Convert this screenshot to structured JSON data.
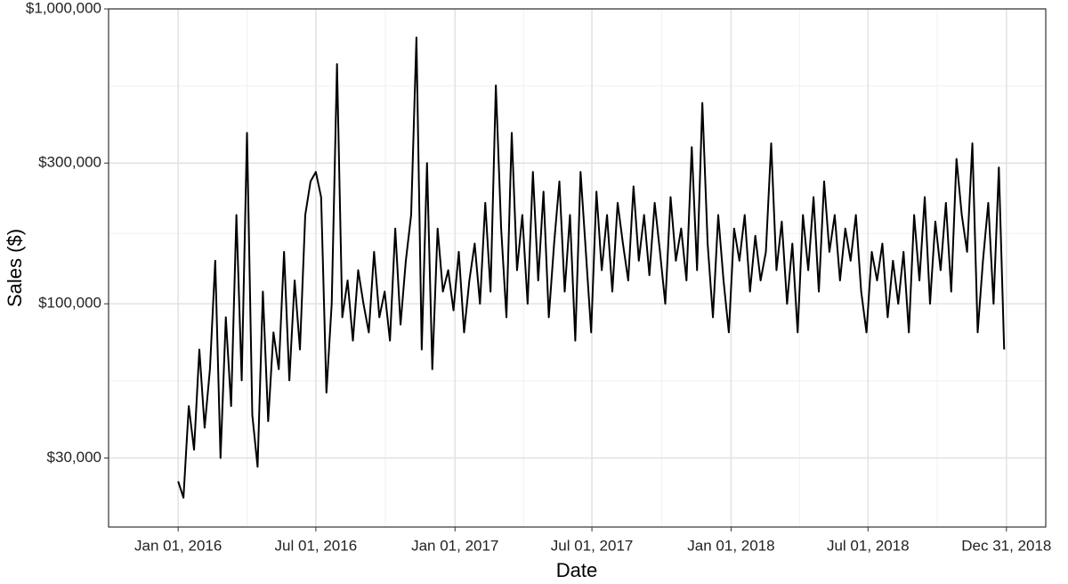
{
  "chart_data": {
    "type": "line",
    "x_label": "Date",
    "y_label": "Sales ($)",
    "log_scale_y": true,
    "grid": true,
    "color": "#000000",
    "xlim": [
      "2015-10-01",
      "2019-02-21"
    ],
    "xticks": [
      {
        "value": "2016-01-01",
        "label": "Jan 01, 2016"
      },
      {
        "value": "2016-07-01",
        "label": "Jul 01, 2016"
      },
      {
        "value": "2017-01-01",
        "label": "Jan 01, 2017"
      },
      {
        "value": "2017-07-01",
        "label": "Jul 01, 2017"
      },
      {
        "value": "2018-01-01",
        "label": "Jan 01, 2018"
      },
      {
        "value": "2018-07-01",
        "label": "Jul 01, 2018"
      },
      {
        "value": "2018-12-31",
        "label": "Dec 31, 2018"
      }
    ],
    "ylim": [
      17500,
      1000000
    ],
    "yticks": [
      {
        "value": 30000,
        "label": "$30,000"
      },
      {
        "value": 100000,
        "label": "$100,000"
      },
      {
        "value": 300000,
        "label": "$300,000"
      },
      {
        "value": 1000000,
        "label": "$1,000,000"
      }
    ],
    "x": [
      "2016-01-01",
      "2016-01-08",
      "2016-01-15",
      "2016-01-22",
      "2016-01-29",
      "2016-02-05",
      "2016-02-12",
      "2016-02-19",
      "2016-02-26",
      "2016-03-04",
      "2016-03-11",
      "2016-03-18",
      "2016-03-25",
      "2016-04-01",
      "2016-04-08",
      "2016-04-15",
      "2016-04-22",
      "2016-04-29",
      "2016-05-06",
      "2016-05-13",
      "2016-05-20",
      "2016-05-27",
      "2016-06-03",
      "2016-06-10",
      "2016-06-17",
      "2016-06-24",
      "2016-07-01",
      "2016-07-08",
      "2016-07-15",
      "2016-07-22",
      "2016-07-29",
      "2016-08-05",
      "2016-08-12",
      "2016-08-19",
      "2016-08-26",
      "2016-09-02",
      "2016-09-09",
      "2016-09-16",
      "2016-09-23",
      "2016-09-30",
      "2016-10-07",
      "2016-10-14",
      "2016-10-21",
      "2016-10-28",
      "2016-11-04",
      "2016-11-11",
      "2016-11-18",
      "2016-11-25",
      "2016-12-02",
      "2016-12-09",
      "2016-12-16",
      "2016-12-23",
      "2016-12-30",
      "2017-01-06",
      "2017-01-13",
      "2017-01-20",
      "2017-01-27",
      "2017-02-03",
      "2017-02-10",
      "2017-02-17",
      "2017-02-24",
      "2017-03-03",
      "2017-03-10",
      "2017-03-17",
      "2017-03-24",
      "2017-03-31",
      "2017-04-07",
      "2017-04-14",
      "2017-04-21",
      "2017-04-28",
      "2017-05-05",
      "2017-05-12",
      "2017-05-19",
      "2017-05-26",
      "2017-06-02",
      "2017-06-09",
      "2017-06-16",
      "2017-06-23",
      "2017-06-30",
      "2017-07-07",
      "2017-07-14",
      "2017-07-21",
      "2017-07-28",
      "2017-08-04",
      "2017-08-11",
      "2017-08-18",
      "2017-08-25",
      "2017-09-01",
      "2017-09-08",
      "2017-09-15",
      "2017-09-22",
      "2017-09-29",
      "2017-10-06",
      "2017-10-13",
      "2017-10-20",
      "2017-10-27",
      "2017-11-03",
      "2017-11-10",
      "2017-11-17",
      "2017-11-24",
      "2017-12-01",
      "2017-12-08",
      "2017-12-15",
      "2017-12-22",
      "2017-12-29",
      "2018-01-05",
      "2018-01-12",
      "2018-01-19",
      "2018-01-26",
      "2018-02-02",
      "2018-02-09",
      "2018-02-16",
      "2018-02-23",
      "2018-03-02",
      "2018-03-09",
      "2018-03-16",
      "2018-03-23",
      "2018-03-30",
      "2018-04-06",
      "2018-04-13",
      "2018-04-20",
      "2018-04-27",
      "2018-05-04",
      "2018-05-11",
      "2018-05-18",
      "2018-05-25",
      "2018-06-01",
      "2018-06-08",
      "2018-06-15",
      "2018-06-22",
      "2018-06-29",
      "2018-07-06",
      "2018-07-13",
      "2018-07-20",
      "2018-07-27",
      "2018-08-03",
      "2018-08-10",
      "2018-08-17",
      "2018-08-24",
      "2018-08-31",
      "2018-09-07",
      "2018-09-14",
      "2018-09-21",
      "2018-09-28",
      "2018-10-05",
      "2018-10-12",
      "2018-10-19",
      "2018-10-26",
      "2018-11-02",
      "2018-11-09",
      "2018-11-16",
      "2018-11-23",
      "2018-11-30",
      "2018-12-07",
      "2018-12-14",
      "2018-12-21",
      "2018-12-28"
    ],
    "values": [
      25000,
      22000,
      45000,
      32000,
      70000,
      38000,
      60000,
      140000,
      30000,
      90000,
      45000,
      200000,
      55000,
      380000,
      42000,
      28000,
      110000,
      40000,
      80000,
      60000,
      150000,
      55000,
      120000,
      70000,
      200000,
      260000,
      280000,
      230000,
      50000,
      100000,
      650000,
      90000,
      120000,
      75000,
      130000,
      100000,
      80000,
      150000,
      90000,
      110000,
      75000,
      180000,
      85000,
      140000,
      200000,
      800000,
      70000,
      300000,
      60000,
      180000,
      110000,
      130000,
      95000,
      150000,
      80000,
      120000,
      160000,
      100000,
      220000,
      110000,
      550000,
      180000,
      90000,
      380000,
      130000,
      200000,
      100000,
      280000,
      120000,
      240000,
      90000,
      160000,
      260000,
      110000,
      200000,
      75000,
      280000,
      150000,
      80000,
      240000,
      130000,
      200000,
      110000,
      220000,
      160000,
      120000,
      250000,
      140000,
      200000,
      125000,
      220000,
      150000,
      100000,
      230000,
      140000,
      180000,
      120000,
      340000,
      130000,
      480000,
      160000,
      90000,
      200000,
      120000,
      80000,
      180000,
      140000,
      200000,
      110000,
      170000,
      120000,
      150000,
      350000,
      130000,
      190000,
      100000,
      160000,
      80000,
      200000,
      130000,
      230000,
      110000,
      260000,
      150000,
      200000,
      120000,
      180000,
      140000,
      200000,
      110000,
      80000,
      150000,
      120000,
      160000,
      90000,
      140000,
      100000,
      150000,
      80000,
      200000,
      120000,
      230000,
      100000,
      190000,
      130000,
      220000,
      110000,
      310000,
      200000,
      150000,
      350000,
      80000,
      140000,
      220000,
      100000,
      290000,
      70000
    ]
  }
}
